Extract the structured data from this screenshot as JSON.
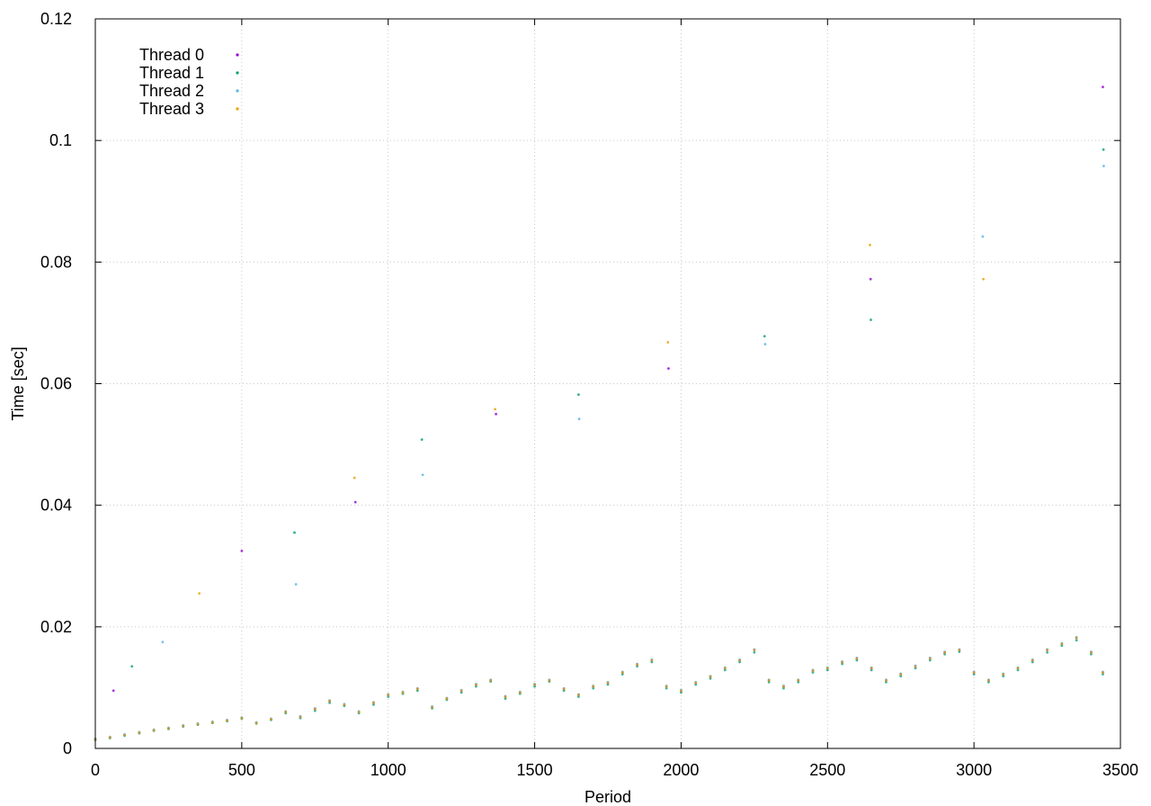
{
  "chart_data": {
    "type": "scatter",
    "title": "",
    "xlabel": "Period",
    "ylabel": "Time [sec]",
    "xlim": [
      0,
      3500
    ],
    "ylim": [
      0,
      0.12
    ],
    "xticks": [
      0,
      500,
      1000,
      1500,
      2000,
      2500,
      3000,
      3500
    ],
    "xtick_labels": [
      "0",
      "500",
      "1000",
      "1500",
      "2000",
      "2500",
      "3000",
      "3500"
    ],
    "yticks": [
      0,
      0.02,
      0.04,
      0.06,
      0.08,
      0.1,
      0.12
    ],
    "ytick_labels": [
      "0",
      "0.02",
      "0.04",
      "0.06",
      "0.08",
      "0.1",
      "0.12"
    ],
    "grid": true,
    "legend_position": "top-left",
    "series": [
      {
        "name": "Thread 0",
        "color": "#9400d3",
        "x": [
          0,
          50,
          100,
          150,
          200,
          250,
          300,
          350,
          400,
          450,
          500,
          550,
          600,
          650,
          700,
          750,
          800,
          850,
          900,
          950,
          1000,
          1050,
          1100,
          1150,
          1200,
          1250,
          1300,
          1350,
          1400,
          1450,
          1500,
          1550,
          1600,
          1650,
          1700,
          1750,
          1800,
          1850,
          1900,
          1950,
          2000,
          2050,
          2100,
          2150,
          2200,
          2250,
          2300,
          2350,
          2400,
          2450,
          2500,
          2550,
          2600,
          2650,
          2700,
          2750,
          2800,
          2850,
          2900,
          2950,
          3000,
          3050,
          3100,
          3150,
          3200,
          3250,
          3300,
          3350,
          3400,
          3440
        ],
        "y": [
          0.0015,
          0.0018,
          0.0022,
          0.0026,
          0.003,
          0.0033,
          0.0037,
          0.004,
          0.0043,
          0.0046,
          0.005,
          0.0042,
          0.0048,
          0.006,
          0.0052,
          0.0065,
          0.0078,
          0.0072,
          0.006,
          0.0075,
          0.0088,
          0.0092,
          0.0098,
          0.0068,
          0.0082,
          0.0095,
          0.0105,
          0.0112,
          0.0085,
          0.0092,
          0.0105,
          0.0112,
          0.0098,
          0.0088,
          0.0102,
          0.0108,
          0.0125,
          0.0138,
          0.0145,
          0.0102,
          0.0095,
          0.0108,
          0.0118,
          0.0132,
          0.0145,
          0.0162,
          0.0112,
          0.0102,
          0.0112,
          0.0128,
          0.0132,
          0.0142,
          0.0148,
          0.0132,
          0.0112,
          0.0122,
          0.0135,
          0.0148,
          0.0158,
          0.0162,
          0.0125,
          0.0112,
          0.0122,
          0.0132,
          0.0145,
          0.0162,
          0.0172,
          0.0182,
          0.0158,
          0.0125
        ]
      },
      {
        "name": "Thread 1",
        "color": "#009e73",
        "x": [
          0,
          50,
          100,
          150,
          200,
          250,
          300,
          350,
          400,
          450,
          500,
          550,
          600,
          650,
          700,
          750,
          800,
          850,
          900,
          950,
          1000,
          1050,
          1100,
          1150,
          1200,
          1250,
          1300,
          1350,
          1400,
          1450,
          1500,
          1550,
          1600,
          1650,
          1700,
          1750,
          1800,
          1850,
          1900,
          1950,
          2000,
          2050,
          2100,
          2150,
          2200,
          2250,
          2300,
          2350,
          2400,
          2450,
          2500,
          2550,
          2600,
          2650,
          2700,
          2750,
          2800,
          2850,
          2900,
          2950,
          3000,
          3050,
          3100,
          3150,
          3200,
          3250,
          3300,
          3350,
          3400,
          3440
        ],
        "y": [
          0.0014,
          0.0017,
          0.0021,
          0.0025,
          0.0029,
          0.0032,
          0.0036,
          0.0039,
          0.0042,
          0.0045,
          0.0049,
          0.0041,
          0.0047,
          0.0058,
          0.005,
          0.0062,
          0.0075,
          0.007,
          0.0058,
          0.0072,
          0.0085,
          0.009,
          0.0095,
          0.0066,
          0.008,
          0.0092,
          0.0102,
          0.011,
          0.0082,
          0.009,
          0.0102,
          0.011,
          0.0095,
          0.0085,
          0.0099,
          0.0105,
          0.0122,
          0.0135,
          0.0142,
          0.0099,
          0.0092,
          0.0105,
          0.0115,
          0.0129,
          0.0142,
          0.0158,
          0.0109,
          0.0099,
          0.0109,
          0.0125,
          0.0129,
          0.0139,
          0.0145,
          0.0129,
          0.0109,
          0.0119,
          0.0132,
          0.0145,
          0.0155,
          0.0159,
          0.0122,
          0.0109,
          0.0119,
          0.0129,
          0.0142,
          0.0158,
          0.0169,
          0.0178,
          0.0155,
          0.0122
        ]
      },
      {
        "name": "Thread 2",
        "color": "#56b4e9",
        "x": [
          0,
          50,
          100,
          150,
          200,
          250,
          300,
          350,
          400,
          450,
          500,
          550,
          600,
          650,
          700,
          750,
          800,
          850,
          900,
          950,
          1000,
          1050,
          1100,
          1150,
          1200,
          1250,
          1300,
          1350,
          1400,
          1450,
          1500,
          1550,
          1600,
          1650,
          1700,
          1750,
          1800,
          1850,
          1900,
          1950,
          2000,
          2050,
          2100,
          2150,
          2200,
          2250,
          2300,
          2350,
          2400,
          2450,
          2500,
          2550,
          2600,
          2650,
          2700,
          2750,
          2800,
          2850,
          2900,
          2950,
          3000,
          3050,
          3100,
          3150,
          3200,
          3250,
          3300,
          3350,
          3400,
          3440
        ],
        "y": [
          0.0016,
          0.0019,
          0.0023,
          0.0027,
          0.0031,
          0.0034,
          0.0038,
          0.0041,
          0.0044,
          0.0047,
          0.0051,
          0.0043,
          0.0049,
          0.0061,
          0.0053,
          0.0066,
          0.0079,
          0.0073,
          0.0061,
          0.0076,
          0.0089,
          0.0093,
          0.0099,
          0.0069,
          0.0083,
          0.0096,
          0.0106,
          0.0113,
          0.0086,
          0.0093,
          0.0106,
          0.0113,
          0.0099,
          0.0089,
          0.0103,
          0.0109,
          0.0126,
          0.0139,
          0.0146,
          0.0103,
          0.0096,
          0.0109,
          0.0119,
          0.0133,
          0.0146,
          0.0163,
          0.0113,
          0.0103,
          0.0113,
          0.0129,
          0.0133,
          0.0143,
          0.0149,
          0.0133,
          0.0113,
          0.0123,
          0.0136,
          0.0149,
          0.0159,
          0.0163,
          0.0126,
          0.0113,
          0.0123,
          0.0133,
          0.0146,
          0.0163,
          0.0173,
          0.0183,
          0.0159,
          0.0126
        ]
      },
      {
        "name": "Thread 3",
        "color": "#e69f00",
        "x": [
          0,
          50,
          100,
          150,
          200,
          250,
          300,
          350,
          400,
          450,
          500,
          550,
          600,
          650,
          700,
          750,
          800,
          850,
          900,
          950,
          1000,
          1050,
          1100,
          1150,
          1200,
          1250,
          1300,
          1350,
          1400,
          1450,
          1500,
          1550,
          1600,
          1650,
          1700,
          1750,
          1800,
          1850,
          1900,
          1950,
          2000,
          2050,
          2100,
          2150,
          2200,
          2250,
          2300,
          2350,
          2400,
          2450,
          2500,
          2550,
          2600,
          2650,
          2700,
          2750,
          2800,
          2850,
          2900,
          2950,
          3000,
          3050,
          3100,
          3150,
          3200,
          3250,
          3300,
          3350,
          3400,
          3440
        ],
        "y": [
          0.0015,
          0.0018,
          0.0022,
          0.0026,
          0.003,
          0.0033,
          0.0037,
          0.004,
          0.0043,
          0.0046,
          0.005,
          0.0042,
          0.0048,
          0.006,
          0.0052,
          0.0065,
          0.0078,
          0.0072,
          0.006,
          0.0075,
          0.0088,
          0.0092,
          0.0098,
          0.0068,
          0.0082,
          0.0095,
          0.0105,
          0.0112,
          0.0085,
          0.0092,
          0.0105,
          0.0112,
          0.0098,
          0.0088,
          0.0102,
          0.0108,
          0.0125,
          0.0138,
          0.0145,
          0.0102,
          0.0095,
          0.0108,
          0.0118,
          0.0132,
          0.0145,
          0.0162,
          0.0112,
          0.0102,
          0.0112,
          0.0128,
          0.0132,
          0.0142,
          0.0148,
          0.0132,
          0.0112,
          0.0122,
          0.0135,
          0.0148,
          0.0158,
          0.0162,
          0.0125,
          0.0112,
          0.0122,
          0.0132,
          0.0145,
          0.0162,
          0.0172,
          0.0182,
          0.0158,
          0.0125
        ]
      }
    ],
    "outliers": [
      {
        "x": 62,
        "y": 0.0095
      },
      {
        "x": 125,
        "y": 0.0135
      },
      {
        "x": 230,
        "y": 0.0175
      },
      {
        "x": 355,
        "y": 0.0255
      },
      {
        "x": 500,
        "y": 0.0325
      },
      {
        "x": 680,
        "y": 0.0355
      },
      {
        "x": 685,
        "y": 0.027
      },
      {
        "x": 885,
        "y": 0.0445
      },
      {
        "x": 888,
        "y": 0.0405
      },
      {
        "x": 1115,
        "y": 0.0508
      },
      {
        "x": 1118,
        "y": 0.045
      },
      {
        "x": 1365,
        "y": 0.0558
      },
      {
        "x": 1368,
        "y": 0.055
      },
      {
        "x": 1650,
        "y": 0.0582
      },
      {
        "x": 1652,
        "y": 0.0542
      },
      {
        "x": 1955,
        "y": 0.0668
      },
      {
        "x": 1957,
        "y": 0.0625
      },
      {
        "x": 2285,
        "y": 0.0678
      },
      {
        "x": 2287,
        "y": 0.0665
      },
      {
        "x": 2645,
        "y": 0.0828
      },
      {
        "x": 2647,
        "y": 0.0772
      },
      {
        "x": 2648,
        "y": 0.0705
      },
      {
        "x": 3030,
        "y": 0.0842
      },
      {
        "x": 3032,
        "y": 0.0772
      },
      {
        "x": 3440,
        "y": 0.1088
      },
      {
        "x": 3442,
        "y": 0.0985
      },
      {
        "x": 3443,
        "y": 0.0958
      }
    ]
  }
}
